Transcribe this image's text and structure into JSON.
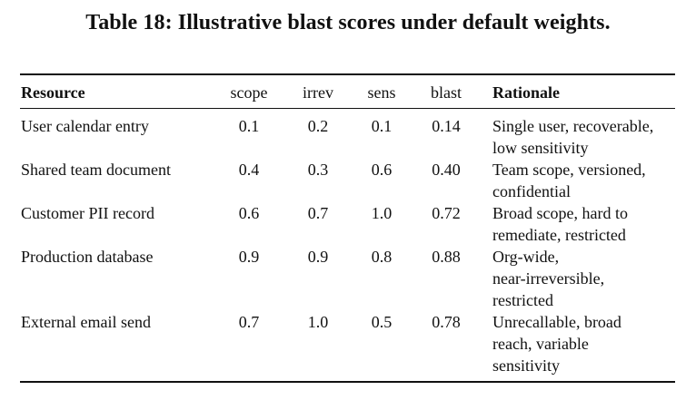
{
  "caption": "Table 18: Illustrative blast scores under default weights.",
  "headers": {
    "resource": "Resource",
    "scope": "scope",
    "irrev": "irrev",
    "sens": "sens",
    "blast": "blast",
    "rationale": "Rationale"
  },
  "rows": [
    {
      "resource": "User calendar entry",
      "scope": "0.1",
      "irrev": "0.2",
      "sens": "0.1",
      "blast": "0.14",
      "rationale": "Single user, recoverable,\nlow sensitivity"
    },
    {
      "resource": "Shared team document",
      "scope": "0.4",
      "irrev": "0.3",
      "sens": "0.6",
      "blast": "0.40",
      "rationale": "Team scope, versioned,\nconfidential"
    },
    {
      "resource": "Customer PII record",
      "scope": "0.6",
      "irrev": "0.7",
      "sens": "1.0",
      "blast": "0.72",
      "rationale": "Broad scope, hard to\nremediate, restricted"
    },
    {
      "resource": "Production database",
      "scope": "0.9",
      "irrev": "0.9",
      "sens": "0.8",
      "blast": "0.88",
      "rationale": "Org-wide,\nnear-irreversible,\nrestricted"
    },
    {
      "resource": "External email send",
      "scope": "0.7",
      "irrev": "1.0",
      "sens": "0.5",
      "blast": "0.78",
      "rationale": "Unrecallable, broad\nreach, variable\nsensitivity"
    }
  ]
}
